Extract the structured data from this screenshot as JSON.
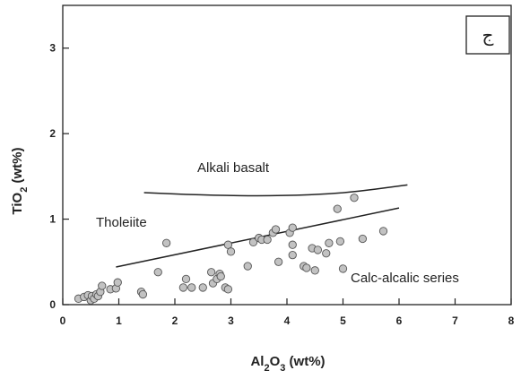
{
  "chart_data": {
    "type": "scatter",
    "xlabel_prefix": "Al",
    "xlabel_sub1": "2",
    "xlabel_mid": "O",
    "xlabel_sub2": "3",
    "xlabel_suffix": " (wt%)",
    "ylabel_prefix": "TiO",
    "ylabel_sub": "2",
    "ylabel_suffix": " (wt%)",
    "xlim": [
      0,
      8
    ],
    "ylim": [
      0,
      3.5
    ],
    "xticks": [
      "0",
      "1",
      "2",
      "3",
      "4",
      "5",
      "6",
      "7",
      "8"
    ],
    "yticks": [
      "0",
      "1",
      "2",
      "3"
    ],
    "panel_label": "ج",
    "annotations": {
      "alkali": "Alkali basalt",
      "tholeiite": "Tholeiite",
      "calc": "Calc-alcalic series"
    },
    "boundary_alkali": [
      [
        1.45,
        1.31
      ],
      [
        2.5,
        1.28
      ],
      [
        3.8,
        1.27
      ],
      [
        5.0,
        1.3
      ],
      [
        6.15,
        1.4
      ]
    ],
    "boundary_calc": [
      [
        0.95,
        0.44
      ],
      [
        6.0,
        1.13
      ]
    ],
    "points": [
      [
        0.28,
        0.07
      ],
      [
        0.38,
        0.09
      ],
      [
        0.45,
        0.11
      ],
      [
        0.5,
        0.05
      ],
      [
        0.52,
        0.1
      ],
      [
        0.56,
        0.07
      ],
      [
        0.6,
        0.12
      ],
      [
        0.63,
        0.1
      ],
      [
        0.67,
        0.15
      ],
      [
        0.7,
        0.22
      ],
      [
        0.85,
        0.18
      ],
      [
        0.95,
        0.19
      ],
      [
        0.98,
        0.26
      ],
      [
        1.4,
        0.15
      ],
      [
        1.43,
        0.12
      ],
      [
        1.7,
        0.38
      ],
      [
        1.85,
        0.72
      ],
      [
        2.15,
        0.2
      ],
      [
        2.2,
        0.3
      ],
      [
        2.3,
        0.2
      ],
      [
        2.5,
        0.2
      ],
      [
        2.65,
        0.38
      ],
      [
        2.68,
        0.25
      ],
      [
        2.75,
        0.3
      ],
      [
        2.8,
        0.36
      ],
      [
        2.82,
        0.33
      ],
      [
        2.9,
        0.2
      ],
      [
        2.95,
        0.7
      ],
      [
        2.95,
        0.18
      ],
      [
        3.0,
        0.62
      ],
      [
        3.3,
        0.45
      ],
      [
        3.4,
        0.73
      ],
      [
        3.5,
        0.78
      ],
      [
        3.55,
        0.76
      ],
      [
        3.65,
        0.76
      ],
      [
        3.75,
        0.84
      ],
      [
        3.8,
        0.88
      ],
      [
        3.85,
        0.5
      ],
      [
        4.05,
        0.84
      ],
      [
        4.1,
        0.9
      ],
      [
        4.1,
        0.7
      ],
      [
        4.1,
        0.58
      ],
      [
        4.3,
        0.45
      ],
      [
        4.35,
        0.43
      ],
      [
        4.45,
        0.66
      ],
      [
        4.5,
        0.4
      ],
      [
        4.55,
        0.64
      ],
      [
        4.7,
        0.6
      ],
      [
        4.75,
        0.72
      ],
      [
        4.9,
        1.12
      ],
      [
        4.95,
        0.74
      ],
      [
        5.0,
        0.42
      ],
      [
        5.2,
        1.25
      ],
      [
        5.35,
        0.77
      ],
      [
        5.72,
        0.86
      ]
    ]
  }
}
